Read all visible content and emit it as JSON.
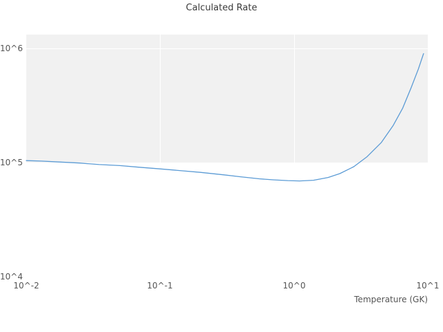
{
  "title": "Calculated Rate",
  "xlabel": "Temperature (GK)",
  "ticks": {
    "x": [
      "10^-2",
      "10^-1",
      "10^0",
      "10^1"
    ],
    "y": [
      "10^4",
      "10^5",
      "10^6"
    ]
  },
  "colors": {
    "line": "#5b9bd5",
    "band": "#f1f1f1",
    "tick_text": "#555555",
    "title_text": "#3a3a3a"
  },
  "chart_data": {
    "type": "line",
    "title": "Calculated Rate",
    "xlabel": "Temperature (GK)",
    "ylabel": "",
    "xscale": "log",
    "yscale": "log",
    "xlim": [
      0.01,
      10
    ],
    "ylim": [
      10000,
      1320000
    ],
    "xticks": [
      0.01,
      0.1,
      1,
      10
    ],
    "yticks": [
      10000,
      100000,
      1000000
    ],
    "grid": "subtle-white-on-band",
    "legend": "none",
    "shaded_band": {
      "ymin": 100000,
      "ymax": 1320000,
      "color": "#f1f1f1"
    },
    "series": [
      {
        "name": "Calculated Rate",
        "color": "#5b9bd5",
        "x": [
          0.01,
          0.013,
          0.018,
          0.025,
          0.035,
          0.05,
          0.07,
          0.1,
          0.14,
          0.2,
          0.3,
          0.4,
          0.55,
          0.7,
          0.9,
          1.1,
          1.4,
          1.8,
          2.2,
          2.8,
          3.5,
          4.5,
          5.5,
          6.5,
          7.5,
          8.5,
          9.3
        ],
        "y": [
          104000,
          103000,
          101000,
          99000,
          96000,
          94000,
          91000,
          88000,
          85000,
          82000,
          78000,
          75000,
          72000,
          70500,
          69500,
          69000,
          70000,
          74000,
          80000,
          92000,
          112000,
          150000,
          210000,
          300000,
          450000,
          660000,
          900000
        ]
      }
    ]
  }
}
